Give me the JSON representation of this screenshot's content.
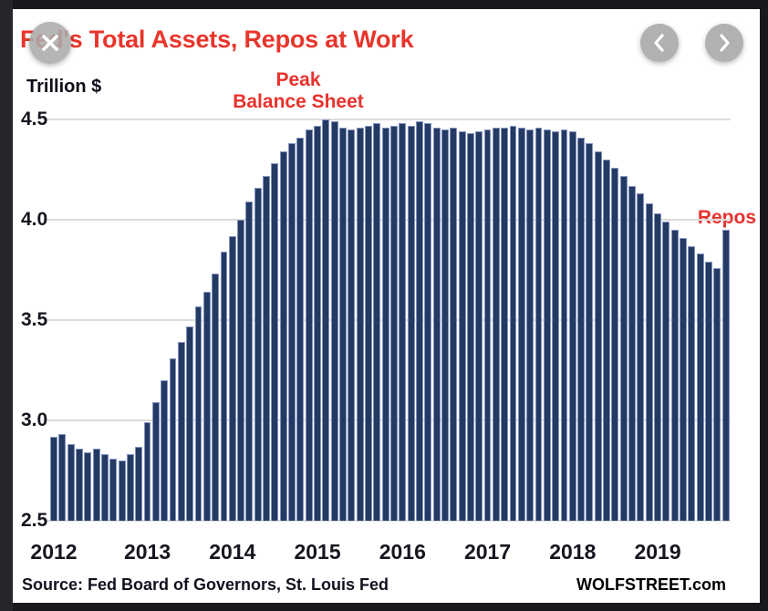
{
  "lightbox": {
    "icons": {
      "close": "close-icon",
      "prev": "chevron-left-icon",
      "next": "chevron-right-icon"
    }
  },
  "chart_data": {
    "type": "bar",
    "title": "Fed's Total Assets, Repos at Work",
    "ylabel": "Trillion $",
    "ylim": [
      2.5,
      4.5
    ],
    "yticks": [
      "4.5",
      "4.0",
      "3.5",
      "3.0",
      "2.5"
    ],
    "gridlines_at": [
      4.5,
      4.0,
      3.5,
      3.0,
      2.5
    ],
    "year_ticks": [
      {
        "label": "2012",
        "index": 0
      },
      {
        "label": "2013",
        "index": 11
      },
      {
        "label": "2014",
        "index": 21
      },
      {
        "label": "2015",
        "index": 31
      },
      {
        "label": "2016",
        "index": 41
      },
      {
        "label": "2017",
        "index": 51
      },
      {
        "label": "2018",
        "index": 61
      },
      {
        "label": "2019",
        "index": 71
      }
    ],
    "values": [
      2.92,
      2.93,
      2.88,
      2.86,
      2.84,
      2.86,
      2.83,
      2.81,
      2.8,
      2.83,
      2.87,
      2.99,
      3.09,
      3.2,
      3.31,
      3.39,
      3.47,
      3.57,
      3.64,
      3.73,
      3.84,
      3.92,
      4.0,
      4.09,
      4.16,
      4.22,
      4.28,
      4.34,
      4.38,
      4.41,
      4.45,
      4.47,
      4.5,
      4.49,
      4.46,
      4.45,
      4.46,
      4.47,
      4.48,
      4.46,
      4.47,
      4.48,
      4.47,
      4.49,
      4.48,
      4.46,
      4.45,
      4.46,
      4.44,
      4.43,
      4.44,
      4.45,
      4.46,
      4.46,
      4.47,
      4.46,
      4.45,
      4.46,
      4.45,
      4.44,
      4.45,
      4.44,
      4.41,
      4.38,
      4.34,
      4.3,
      4.26,
      4.22,
      4.17,
      4.13,
      4.08,
      4.03,
      3.99,
      3.95,
      3.91,
      3.87,
      3.83,
      3.79,
      3.76,
      3.95
    ],
    "annotations": {
      "peak_line1": "Peak",
      "peak_line2": "Balance Sheet",
      "repos": "Repos"
    },
    "colors": {
      "bar": "#253a63",
      "bar_edge": "#8494c2",
      "gridline": "#dcdcdc",
      "accent_red": "#e8352b"
    }
  },
  "footer": {
    "source": "Source: Fed Board of Governors, St. Louis Fed",
    "brand": "WOLFSTREET.com"
  }
}
